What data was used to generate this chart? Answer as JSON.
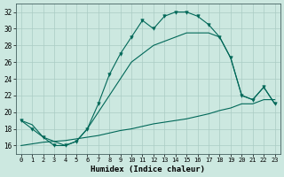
{
  "xlabel": "Humidex (Indice chaleur)",
  "bg_color": "#cce8e0",
  "grid_color": "#aaccc4",
  "line_color": "#006858",
  "xlim": [
    -0.5,
    23.5
  ],
  "ylim": [
    15,
    33
  ],
  "xticks": [
    0,
    1,
    2,
    3,
    4,
    5,
    6,
    7,
    8,
    9,
    10,
    11,
    12,
    13,
    14,
    15,
    16,
    17,
    18,
    19,
    20,
    21,
    22,
    23
  ],
  "yticks": [
    16,
    18,
    20,
    22,
    24,
    26,
    28,
    30,
    32
  ],
  "x": [
    0,
    1,
    2,
    3,
    4,
    5,
    6,
    7,
    8,
    9,
    10,
    11,
    12,
    13,
    14,
    15,
    16,
    17,
    18,
    19,
    20,
    21,
    22,
    23
  ],
  "y_jagged": [
    19,
    18,
    17,
    16,
    16,
    16.5,
    18,
    21,
    24.5,
    27,
    29,
    31,
    30,
    31.5,
    32,
    32,
    31.5,
    30.5,
    29,
    26.5,
    22,
    21.5,
    23,
    21
  ],
  "y_upper": [
    19,
    18.5,
    17,
    16.5,
    16,
    16.5,
    18,
    20,
    22,
    24,
    26,
    27,
    28,
    28.5,
    29,
    29.5,
    29.5,
    29.5,
    29,
    26.5,
    22,
    21.5,
    23,
    21
  ],
  "y_lower": [
    16,
    16.2,
    16.4,
    16.5,
    16.6,
    16.8,
    17,
    17.2,
    17.5,
    17.8,
    18,
    18.3,
    18.6,
    18.8,
    19,
    19.2,
    19.5,
    19.8,
    20.2,
    20.5,
    21,
    21,
    21.5,
    21.5
  ]
}
